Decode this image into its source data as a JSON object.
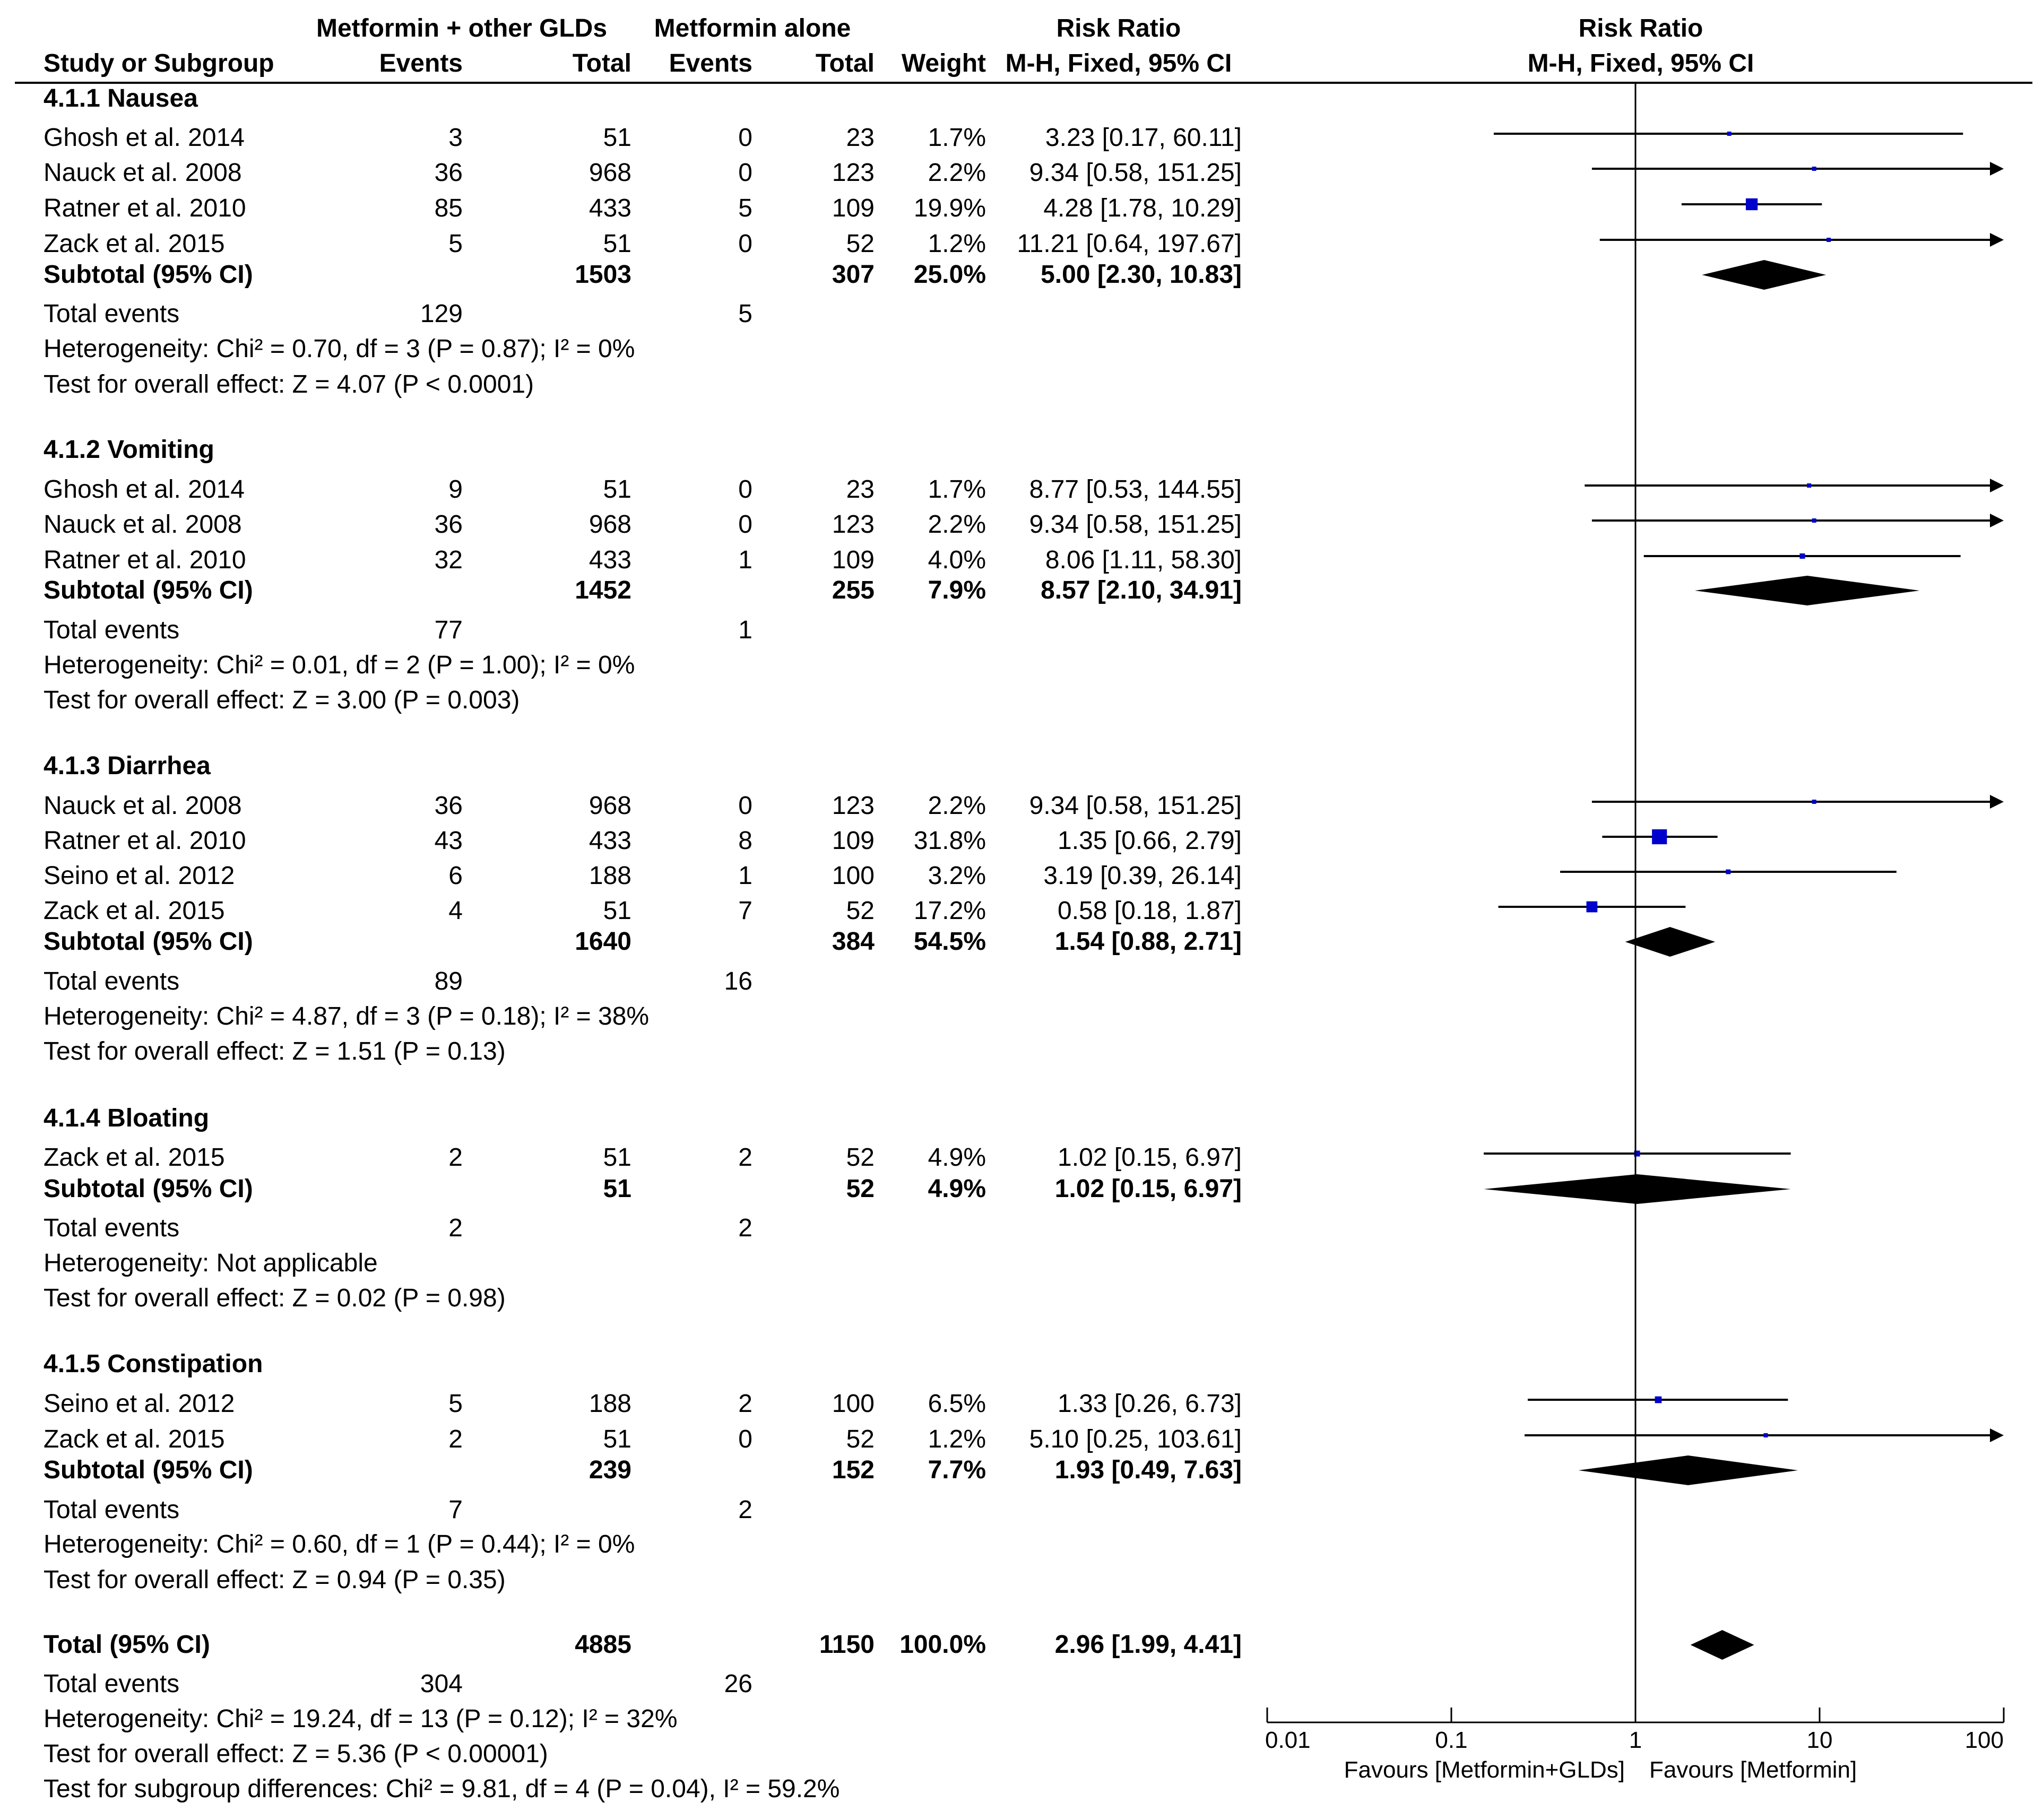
{
  "chart_data": {
    "type": "forest",
    "scale": "log",
    "xlim": [
      0.01,
      100
    ],
    "header": {
      "group1": "Metformin + other GLDs",
      "group2": "Metformin alone",
      "study_col": "Study or Subgroup",
      "events": "Events",
      "total": "Total",
      "weight": "Weight",
      "effect_title": "Risk Ratio",
      "effect_sub": "M-H, Fixed, 95% CI",
      "plot_title": "Risk Ratio",
      "plot_sub": "M-H, Fixed, 95% CI"
    },
    "subgroups": [
      {
        "title": "4.1.1 Nausea",
        "studies": [
          {
            "study": "Ghosh et al. 2014",
            "e1": "3",
            "n1": "51",
            "e2": "0",
            "n2": "23",
            "weight": "1.7%",
            "ci_text": "3.23 [0.17, 60.11]",
            "rr": 3.23,
            "lo": 0.17,
            "hi": 60.11
          },
          {
            "study": "Nauck et al. 2008",
            "e1": "36",
            "n1": "968",
            "e2": "0",
            "n2": "123",
            "weight": "2.2%",
            "ci_text": "9.34 [0.58, 151.25]",
            "rr": 9.34,
            "lo": 0.58,
            "hi": 151.25
          },
          {
            "study": "Ratner et al. 2010",
            "e1": "85",
            "n1": "433",
            "e2": "5",
            "n2": "109",
            "weight": "19.9%",
            "ci_text": "4.28 [1.78, 10.29]",
            "rr": 4.28,
            "lo": 1.78,
            "hi": 10.29
          },
          {
            "study": "Zack et al. 2015",
            "e1": "5",
            "n1": "51",
            "e2": "0",
            "n2": "52",
            "weight": "1.2%",
            "ci_text": "11.21 [0.64, 197.67]",
            "rr": 11.21,
            "lo": 0.64,
            "hi": 197.67
          }
        ],
        "subtotal": {
          "label": "Subtotal (95% CI)",
          "n1": "1503",
          "n2": "307",
          "weight": "25.0%",
          "ci_text": "5.00 [2.30, 10.83]",
          "rr": 5.0,
          "lo": 2.3,
          "hi": 10.83
        },
        "total_events": {
          "label": "Total events",
          "e1": "129",
          "e2": "5"
        },
        "heterogeneity": "Heterogeneity: Chi² = 0.70, df = 3 (P = 0.87); I² = 0%",
        "overall": "Test for overall effect: Z = 4.07 (P < 0.0001)"
      },
      {
        "title": "4.1.2 Vomiting",
        "studies": [
          {
            "study": "Ghosh et al. 2014",
            "e1": "9",
            "n1": "51",
            "e2": "0",
            "n2": "23",
            "weight": "1.7%",
            "ci_text": "8.77 [0.53, 144.55]",
            "rr": 8.77,
            "lo": 0.53,
            "hi": 144.55
          },
          {
            "study": "Nauck et al. 2008",
            "e1": "36",
            "n1": "968",
            "e2": "0",
            "n2": "123",
            "weight": "2.2%",
            "ci_text": "9.34 [0.58, 151.25]",
            "rr": 9.34,
            "lo": 0.58,
            "hi": 151.25
          },
          {
            "study": "Ratner et al. 2010",
            "e1": "32",
            "n1": "433",
            "e2": "1",
            "n2": "109",
            "weight": "4.0%",
            "ci_text": "8.06 [1.11, 58.30]",
            "rr": 8.06,
            "lo": 1.11,
            "hi": 58.3
          }
        ],
        "subtotal": {
          "label": "Subtotal (95% CI)",
          "n1": "1452",
          "n2": "255",
          "weight": "7.9%",
          "ci_text": "8.57 [2.10, 34.91]",
          "rr": 8.57,
          "lo": 2.1,
          "hi": 34.91
        },
        "total_events": {
          "label": "Total events",
          "e1": "77",
          "e2": "1"
        },
        "heterogeneity": "Heterogeneity: Chi² = 0.01, df = 2 (P = 1.00); I² = 0%",
        "overall": "Test for overall effect: Z = 3.00 (P = 0.003)"
      },
      {
        "title": "4.1.3 Diarrhea",
        "studies": [
          {
            "study": "Nauck et al. 2008",
            "e1": "36",
            "n1": "968",
            "e2": "0",
            "n2": "123",
            "weight": "2.2%",
            "ci_text": "9.34 [0.58, 151.25]",
            "rr": 9.34,
            "lo": 0.58,
            "hi": 151.25
          },
          {
            "study": "Ratner et al. 2010",
            "e1": "43",
            "n1": "433",
            "e2": "8",
            "n2": "109",
            "weight": "31.8%",
            "ci_text": "1.35 [0.66, 2.79]",
            "rr": 1.35,
            "lo": 0.66,
            "hi": 2.79
          },
          {
            "study": "Seino et al. 2012",
            "e1": "6",
            "n1": "188",
            "e2": "1",
            "n2": "100",
            "weight": "3.2%",
            "ci_text": "3.19 [0.39, 26.14]",
            "rr": 3.19,
            "lo": 0.39,
            "hi": 26.14
          },
          {
            "study": "Zack et al. 2015",
            "e1": "4",
            "n1": "51",
            "e2": "7",
            "n2": "52",
            "weight": "17.2%",
            "ci_text": "0.58 [0.18, 1.87]",
            "rr": 0.58,
            "lo": 0.18,
            "hi": 1.87
          }
        ],
        "subtotal": {
          "label": "Subtotal (95% CI)",
          "n1": "1640",
          "n2": "384",
          "weight": "54.5%",
          "ci_text": "1.54 [0.88, 2.71]",
          "rr": 1.54,
          "lo": 0.88,
          "hi": 2.71
        },
        "total_events": {
          "label": "Total events",
          "e1": "89",
          "e2": "16"
        },
        "heterogeneity": "Heterogeneity: Chi² = 4.87, df = 3 (P = 0.18); I² = 38%",
        "overall": "Test for overall effect: Z = 1.51 (P = 0.13)"
      },
      {
        "title": "4.1.4 Bloating",
        "studies": [
          {
            "study": "Zack et al. 2015",
            "e1": "2",
            "n1": "51",
            "e2": "2",
            "n2": "52",
            "weight": "4.9%",
            "ci_text": "1.02 [0.15, 6.97]",
            "rr": 1.02,
            "lo": 0.15,
            "hi": 6.97
          }
        ],
        "subtotal": {
          "label": "Subtotal (95% CI)",
          "n1": "51",
          "n2": "52",
          "weight": "4.9%",
          "ci_text": "1.02 [0.15, 6.97]",
          "rr": 1.02,
          "lo": 0.15,
          "hi": 6.97
        },
        "total_events": {
          "label": "Total events",
          "e1": "2",
          "e2": "2"
        },
        "heterogeneity": "Heterogeneity: Not applicable",
        "overall": "Test for overall effect: Z = 0.02 (P = 0.98)"
      },
      {
        "title": "4.1.5 Constipation",
        "studies": [
          {
            "study": "Seino et al. 2012",
            "e1": "5",
            "n1": "188",
            "e2": "2",
            "n2": "100",
            "weight": "6.5%",
            "ci_text": "1.33 [0.26, 6.73]",
            "rr": 1.33,
            "lo": 0.26,
            "hi": 6.73
          },
          {
            "study": "Zack et al. 2015",
            "e1": "2",
            "n1": "51",
            "e2": "0",
            "n2": "52",
            "weight": "1.2%",
            "ci_text": "5.10 [0.25, 103.61]",
            "rr": 5.1,
            "lo": 0.25,
            "hi": 103.61
          }
        ],
        "subtotal": {
          "label": "Subtotal (95% CI)",
          "n1": "239",
          "n2": "152",
          "weight": "7.7%",
          "ci_text": "1.93 [0.49, 7.63]",
          "rr": 1.93,
          "lo": 0.49,
          "hi": 7.63
        },
        "total_events": {
          "label": "Total events",
          "e1": "7",
          "e2": "2"
        },
        "heterogeneity": "Heterogeneity: Chi² = 0.60, df = 1 (P = 0.44); I² = 0%",
        "overall": "Test for overall effect: Z = 0.94 (P = 0.35)"
      }
    ],
    "total": {
      "label": "Total (95% CI)",
      "n1": "4885",
      "n2": "1150",
      "weight": "100.0%",
      "ci_text": "2.96 [1.99, 4.41]",
      "rr": 2.96,
      "lo": 1.99,
      "hi": 4.41,
      "total_events": {
        "label": "Total events",
        "e1": "304",
        "e2": "26"
      },
      "heterogeneity": "Heterogeneity: Chi² = 19.24, df = 13 (P = 0.12); I² = 32%",
      "overall": "Test for overall effect: Z = 5.36 (P < 0.00001)",
      "subgroup_diff": "Test for subgroup differences: Chi² = 9.81, df = 4 (P = 0.04), I² = 59.2%"
    },
    "axis": {
      "ticks": [
        0.01,
        0.1,
        1,
        10,
        100
      ],
      "tick_labels": [
        "0.01",
        "0.1",
        "1",
        "10",
        "100"
      ],
      "favours_left": "Favours [Metformin+GLDs]",
      "favours_right": "Favours [Metformin]"
    },
    "colors": {
      "marker": "#0000cc",
      "line": "#000000",
      "diamond": "#000000"
    }
  }
}
